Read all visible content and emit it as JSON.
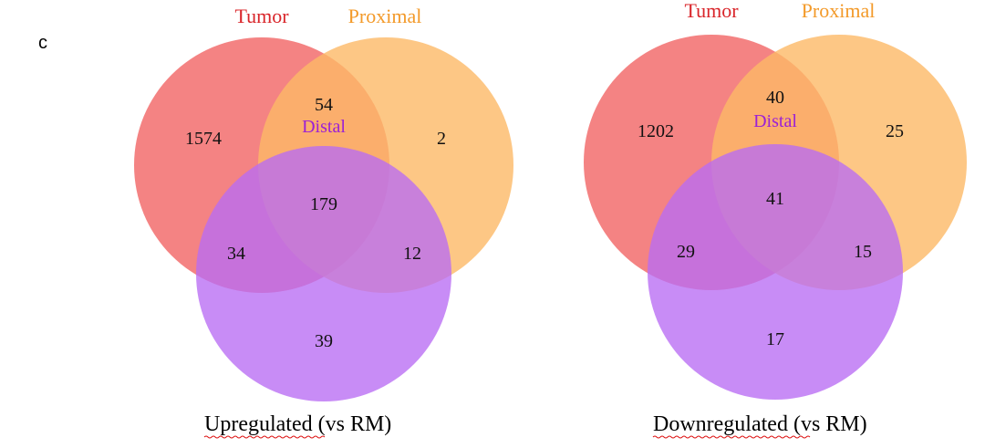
{
  "panel_label": "c",
  "colors": {
    "tumor": "#f26d6d",
    "proximal": "#fdb967",
    "distal": "#b86cf3",
    "tumor_label": "#d9252a",
    "proximal_label": "#f39a2a",
    "distal_label": "#9b20d6",
    "spellcheck_underline": "#dd1111"
  },
  "diagrams": [
    {
      "set_labels": {
        "tumor": "Tumor",
        "proximal": "Proximal",
        "distal": "Distal"
      },
      "counts": {
        "tumor_only": "1574",
        "tumor_proximal": "54",
        "proximal_only": "2",
        "all_three": "179",
        "tumor_distal": "34",
        "proximal_distal": "12",
        "distal_only": "39"
      },
      "caption": "Upregulated (vs RM)"
    },
    {
      "set_labels": {
        "tumor": "Tumor",
        "proximal": "Proximal",
        "distal": "Distal"
      },
      "counts": {
        "tumor_only": "1202",
        "tumor_proximal": "40",
        "proximal_only": "25",
        "all_three": "41",
        "tumor_distal": "29",
        "proximal_distal": "15",
        "distal_only": "17"
      },
      "caption": "Downregulated (vs RM)"
    }
  ]
}
